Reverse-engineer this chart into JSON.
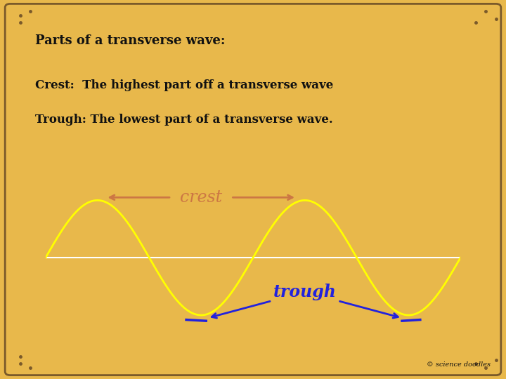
{
  "bg_color": "#E8B84B",
  "wave_box_color": "#000000",
  "wave_color": "#FFFF00",
  "crest_line_color": "#CC7744",
  "trough_line_color": "#2222DD",
  "crest_label_color": "#CC7744",
  "trough_label_color": "#2222DD",
  "title_text": "Parts of a transverse wave:",
  "line1_text": "Crest:  The highest part off a transverse wave",
  "line2_text": "Trough: The lowest part of a transverse wave.",
  "crest_label": "crest",
  "trough_label": "trough",
  "copyright_text": "© science doodles",
  "text_color": "#111111",
  "font_size_title": 13,
  "font_size_body": 12,
  "font_size_wave_label": 17,
  "font_size_copyright": 7,
  "border_color": "#7a5a2a"
}
